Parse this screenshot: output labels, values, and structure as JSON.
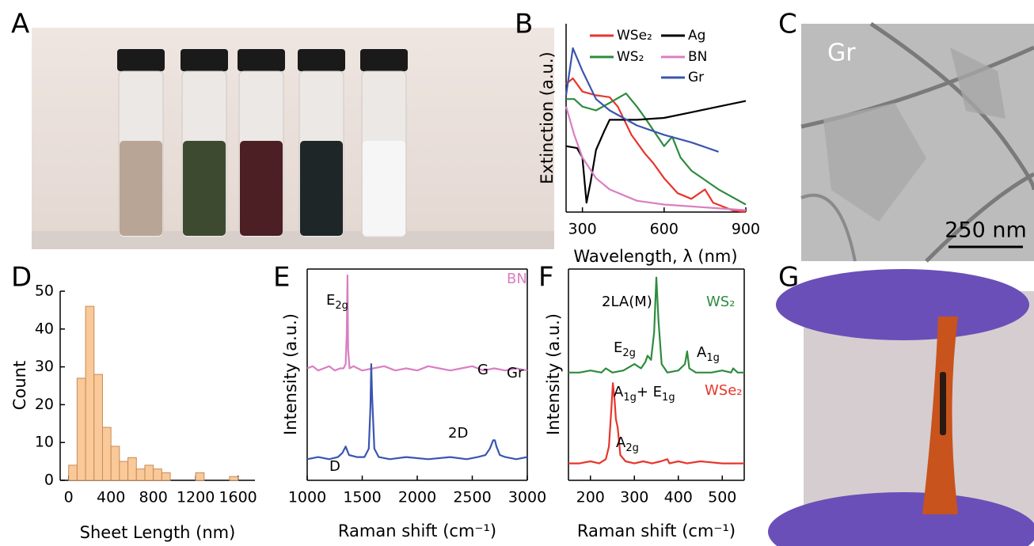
{
  "panel_labels": [
    "A",
    "B",
    "C",
    "D",
    "E",
    "F",
    "G"
  ],
  "image_labels": {
    "gr": "Gr",
    "scale_bar": "250 nm"
  },
  "chart_data": [
    {
      "type": "line",
      "xlabel": "Wavelength, λ (nm)",
      "ylabel": "Extinction (a.u.)",
      "xlim": [
        240,
        900
      ],
      "xticks": [
        300,
        600,
        900
      ],
      "ylim": [
        0,
        1
      ],
      "legend": true,
      "series": [
        {
          "name": "WSe₂",
          "color": "#e8352b",
          "x": [
            240,
            265,
            300,
            350,
            400,
            430,
            480,
            530,
            560,
            600,
            650,
            700,
            750,
            780,
            850,
            900
          ],
          "values": [
            0.68,
            0.71,
            0.64,
            0.62,
            0.61,
            0.56,
            0.41,
            0.31,
            0.26,
            0.18,
            0.1,
            0.07,
            0.12,
            0.05,
            0.01,
            0
          ]
        },
        {
          "name": "WS₂",
          "color": "#2e8b3e",
          "x": [
            240,
            270,
            300,
            350,
            400,
            460,
            500,
            530,
            600,
            630,
            660,
            700,
            800,
            900
          ],
          "values": [
            0.6,
            0.6,
            0.56,
            0.54,
            0.58,
            0.63,
            0.56,
            0.5,
            0.35,
            0.4,
            0.29,
            0.22,
            0.12,
            0.04
          ]
        },
        {
          "name": "Ag",
          "color": "#000000",
          "x": [
            240,
            280,
            300,
            315,
            330,
            350,
            380,
            400,
            500,
            600,
            700,
            800,
            900
          ],
          "values": [
            0.35,
            0.34,
            0.29,
            0.05,
            0.16,
            0.33,
            0.43,
            0.49,
            0.49,
            0.5,
            0.53,
            0.56,
            0.59
          ]
        },
        {
          "name": "BN",
          "color": "#d97fc2",
          "x": [
            240,
            270,
            300,
            350,
            400,
            500,
            600,
            700,
            900
          ],
          "values": [
            0.56,
            0.41,
            0.29,
            0.18,
            0.12,
            0.06,
            0.04,
            0.03,
            0.01
          ]
        },
        {
          "name": "Gr",
          "color": "#3a55b0",
          "x": [
            240,
            265,
            300,
            350,
            400,
            500,
            600,
            700,
            800
          ],
          "values": [
            0.62,
            0.87,
            0.75,
            0.6,
            0.54,
            0.46,
            0.41,
            0.37,
            0.32
          ]
        }
      ]
    },
    {
      "type": "histogram",
      "xlabel": "Sheet Length (nm)",
      "ylabel": "Count",
      "color": "#f9c999",
      "bins": [
        0,
        80,
        160,
        240,
        320,
        400,
        480,
        560,
        640,
        720,
        800,
        880,
        960,
        1040,
        1120,
        1200,
        1280,
        1360,
        1440,
        1520,
        1600
      ],
      "values": [
        4,
        27,
        46,
        28,
        14,
        9,
        5,
        6,
        3,
        4,
        3,
        2,
        0,
        0,
        0,
        2,
        0,
        0,
        0,
        1
      ],
      "xlim": [
        -80,
        1760
      ],
      "xticks": [
        0,
        400,
        800,
        1200,
        1600
      ],
      "ylim": [
        0,
        50
      ],
      "yticks": [
        0,
        10,
        20,
        30,
        40,
        50
      ]
    },
    {
      "type": "line",
      "xlabel": "Raman shift (cm⁻¹)",
      "ylabel": "Intensity (a.u.)",
      "xlim": [
        1000,
        3000
      ],
      "xticks": [
        1000,
        1500,
        2000,
        2500,
        3000
      ],
      "ylim": [
        0,
        1
      ],
      "legend": false,
      "series": [
        {
          "name": "BN",
          "color": "#d97fc2",
          "x": [
            1000,
            1050,
            1100,
            1150,
            1200,
            1250,
            1300,
            1330,
            1350,
            1360,
            1366,
            1372,
            1385,
            1420,
            1500,
            1600,
            1700,
            1800,
            1900,
            2000,
            2100,
            2200,
            2300,
            2400,
            2500,
            2600,
            2700,
            2800,
            2900,
            3000
          ],
          "values": [
            0.53,
            0.54,
            0.52,
            0.53,
            0.54,
            0.52,
            0.53,
            0.53,
            0.55,
            0.7,
            0.97,
            0.62,
            0.53,
            0.54,
            0.52,
            0.53,
            0.54,
            0.52,
            0.53,
            0.52,
            0.54,
            0.53,
            0.52,
            0.53,
            0.54,
            0.52,
            0.53,
            0.52,
            0.53,
            0.52
          ]
        },
        {
          "name": "Gr",
          "color": "#3a55b0",
          "x": [
            1000,
            1100,
            1200,
            1280,
            1320,
            1350,
            1380,
            1450,
            1520,
            1560,
            1575,
            1582,
            1590,
            1610,
            1650,
            1750,
            1900,
            2100,
            2300,
            2450,
            2550,
            2620,
            2660,
            2690,
            2705,
            2720,
            2750,
            2800,
            2900,
            3000
          ],
          "values": [
            0.1,
            0.11,
            0.1,
            0.11,
            0.13,
            0.16,
            0.12,
            0.11,
            0.11,
            0.15,
            0.35,
            0.55,
            0.4,
            0.15,
            0.11,
            0.1,
            0.11,
            0.1,
            0.11,
            0.1,
            0.11,
            0.12,
            0.15,
            0.19,
            0.19,
            0.16,
            0.12,
            0.11,
            0.1,
            0.11
          ]
        }
      ],
      "annotations": [
        [
          {
            "text": "E"
          },
          {
            "sub": "2g"
          }
        ],
        [
          {
            "text": "D"
          }
        ],
        [
          {
            "text": "G"
          }
        ],
        [
          {
            "text": "2D"
          }
        ]
      ]
    },
    {
      "type": "line",
      "xlabel": "Raman shift (cm⁻¹)",
      "ylabel": "Intensity (a.u.)",
      "xlim": [
        150,
        550
      ],
      "xticks": [
        200,
        300,
        400,
        500
      ],
      "ylim": [
        0,
        1
      ],
      "legend": false,
      "series": [
        {
          "name": "WS₂",
          "color": "#2e8b3e",
          "x": [
            150,
            175,
            200,
            225,
            235,
            250,
            275,
            300,
            315,
            325,
            330,
            338,
            345,
            350,
            355,
            362,
            375,
            400,
            415,
            420,
            425,
            440,
            475,
            500,
            520,
            525,
            535,
            550
          ],
          "values": [
            0.51,
            0.51,
            0.52,
            0.51,
            0.53,
            0.51,
            0.52,
            0.55,
            0.53,
            0.56,
            0.59,
            0.57,
            0.7,
            0.96,
            0.75,
            0.55,
            0.51,
            0.52,
            0.55,
            0.61,
            0.53,
            0.51,
            0.51,
            0.52,
            0.51,
            0.53,
            0.51,
            0.51
          ]
        },
        {
          "name": "WSe₂",
          "color": "#e8352b",
          "x": [
            150,
            175,
            200,
            220,
            235,
            242,
            248,
            251,
            255,
            258,
            262,
            268,
            280,
            300,
            320,
            340,
            360,
            375,
            380,
            400,
            420,
            450,
            500,
            550
          ],
          "values": [
            0.08,
            0.08,
            0.09,
            0.08,
            0.1,
            0.16,
            0.35,
            0.46,
            0.38,
            0.29,
            0.25,
            0.12,
            0.09,
            0.08,
            0.09,
            0.08,
            0.09,
            0.1,
            0.08,
            0.09,
            0.08,
            0.09,
            0.08,
            0.08
          ]
        }
      ],
      "annotations": [
        [
          {
            "text": "2LA(M)"
          }
        ],
        [
          {
            "text": "E"
          },
          {
            "sub": "2g"
          }
        ],
        [
          {
            "text": "A"
          },
          {
            "sub": "1g"
          }
        ],
        [
          {
            "text": "A"
          },
          {
            "sub": "1g"
          },
          {
            "text": "+ E"
          },
          {
            "sub": "1g"
          }
        ],
        [
          {
            "text": "A"
          },
          {
            "sub": "2g"
          }
        ]
      ]
    }
  ]
}
